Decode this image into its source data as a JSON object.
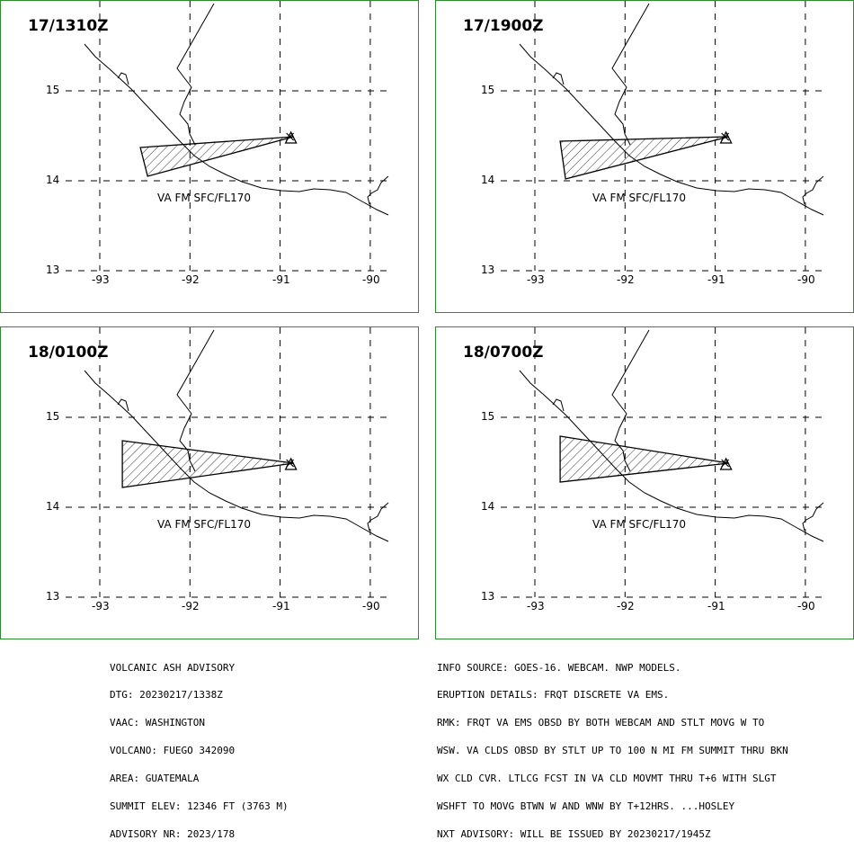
{
  "panels": [
    {
      "time": "17/1310Z",
      "ash_label": "VA FM SFC/FL170",
      "ash_polygon": [
        [
          -92.55,
          14.37
        ],
        [
          -90.85,
          14.49
        ],
        [
          -92.47,
          14.05
        ]
      ]
    },
    {
      "time": "17/1900Z",
      "ash_label": "VA FM SFC/FL170",
      "ash_polygon": [
        [
          -92.72,
          14.44
        ],
        [
          -90.85,
          14.49
        ],
        [
          -92.66,
          14.02
        ]
      ]
    },
    {
      "time": "18/0100Z",
      "ash_label": "VA FM SFC/FL170",
      "ash_polygon": [
        [
          -92.75,
          14.74
        ],
        [
          -90.85,
          14.49
        ],
        [
          -92.75,
          14.22
        ]
      ]
    },
    {
      "time": "18/0700Z",
      "ash_label": "VA FM SFC/FL170",
      "ash_polygon": [
        [
          -92.72,
          14.79
        ],
        [
          -90.85,
          14.49
        ],
        [
          -92.72,
          14.28
        ]
      ]
    }
  ],
  "map": {
    "lat_ticks": [
      "15",
      "14",
      "13"
    ],
    "lon_ticks": [
      "-93",
      "-92",
      "-91",
      "-90"
    ],
    "volcano": {
      "lon": -90.88,
      "lat": 14.47
    }
  },
  "advisory_left": [
    "VOLCANIC ASH ADVISORY",
    "DTG: 20230217/1338Z",
    "VAAC: WASHINGTON",
    "VOLCANO: FUEGO 342090",
    "AREA: GUATEMALA",
    "SUMMIT ELEV: 12346 FT (3763 M)",
    "ADVISORY NR: 2023/178"
  ],
  "advisory_right": [
    "INFO SOURCE: GOES-16. WEBCAM. NWP MODELS.",
    "ERUPTION DETAILS: FRQT DISCRETE VA EMS.",
    "RMK: FRQT VA EMS OBSD BY BOTH WEBCAM AND STLT MOVG W TO",
    "WSW. VA CLDS OBSD BY STLT UP TO 100 N MI FM SUMMIT THRU BKN",
    "WX CLD CVR. LTLCG FCST IN VA CLD MOVMT THRU T+6 WITH SLGT",
    "WSHFT TO MOVG BTWN W AND WNW BY T+12HRS. ...HOSLEY",
    "NXT ADVISORY: WILL BE ISSUED BY 20230217/1945Z"
  ],
  "colors": {
    "frame": "#2e8b2e",
    "lines": "#000000"
  }
}
